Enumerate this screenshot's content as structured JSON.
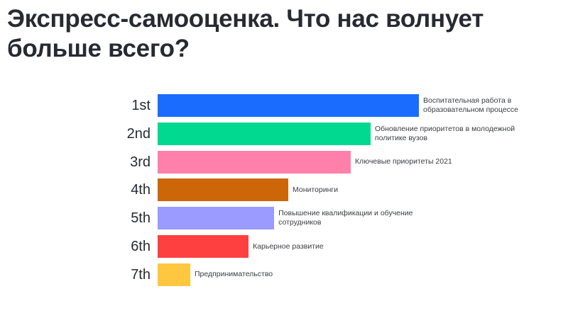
{
  "title": "Экспресс-самооценка. Что нас волнует больше всего?",
  "chart_data": {
    "type": "bar",
    "orientation": "horizontal",
    "title": "Экспресс-самооценка. Что нас волнует больше всего?",
    "ranks": [
      "1st",
      "2nd",
      "3rd",
      "4th",
      "5th",
      "6th",
      "7th"
    ],
    "categories": [
      "Воспитательная работа в образовательном процессе",
      "Обновление приоритетов в молодежной политике вузов",
      "Ключевые приоритеты 2021",
      "Мониторинги",
      "Повышение квалификации и обучение сотрудников",
      "Карьерное развитие",
      "Предпринимательство"
    ],
    "values": [
      100,
      81.5,
      73.9,
      50,
      44.6,
      34.8,
      12.5
    ],
    "colors": [
      "#196cff",
      "#00d98f",
      "#ff80ab",
      "#cc6608",
      "#9a9aff",
      "#ff4040",
      "#ffc740"
    ],
    "grid": false,
    "axes_visible": false
  }
}
